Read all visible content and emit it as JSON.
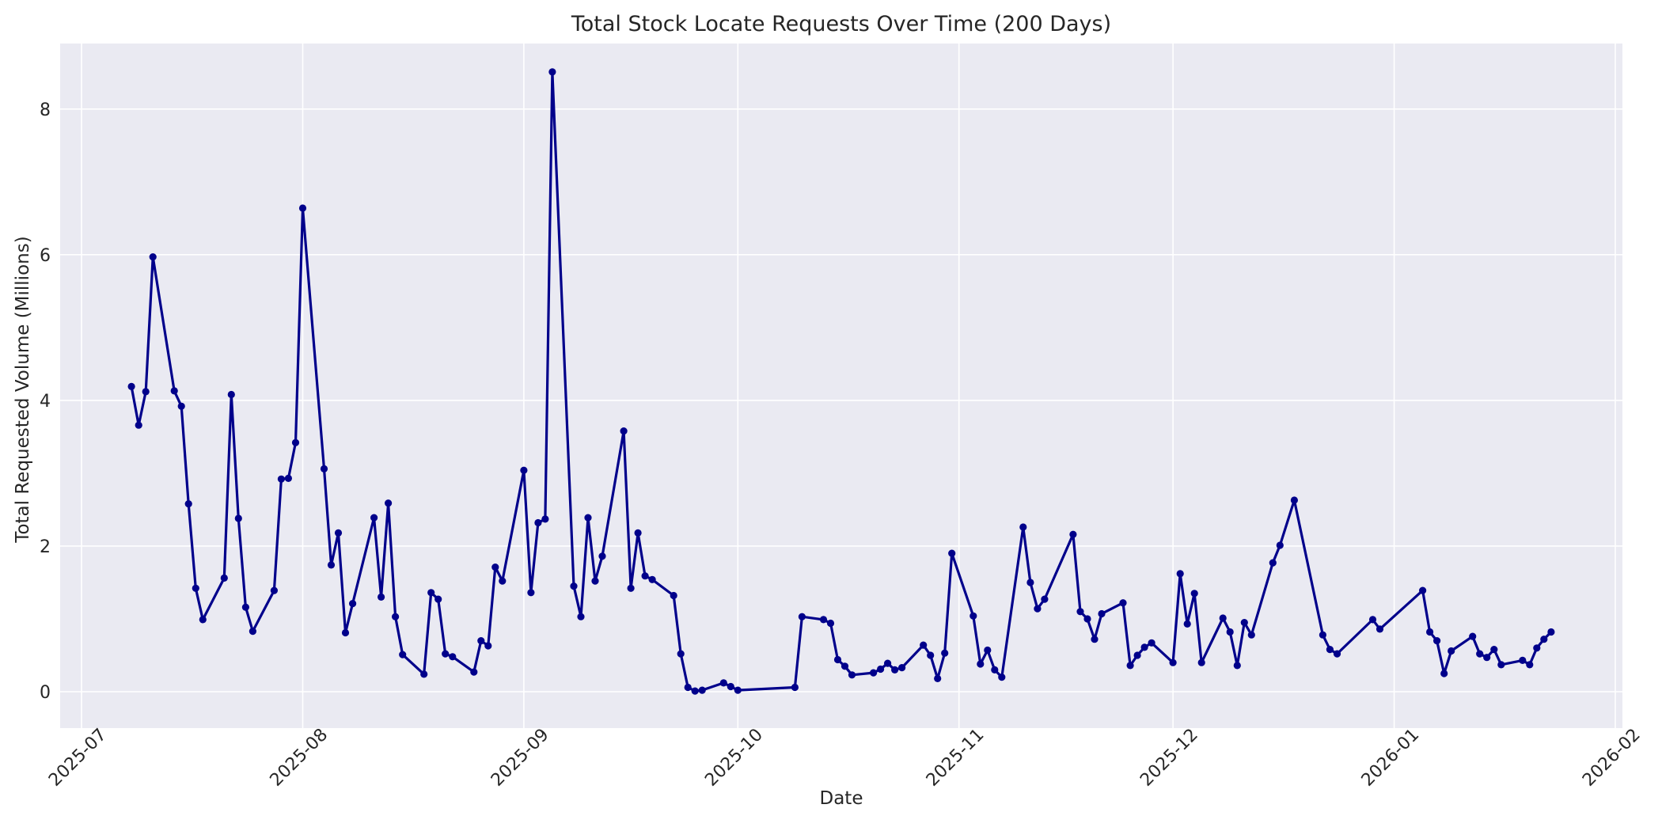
{
  "figure": {
    "background_color": "#ffffff"
  },
  "chart_data": {
    "type": "line",
    "title": "Total Stock Locate Requests Over Time (200 Days)",
    "xlabel": "Date",
    "ylabel": "Total Requested Volume (Millions)",
    "x_tick_labels": [
      "2025-07",
      "2025-08",
      "2025-09",
      "2025-10",
      "2025-11",
      "2025-12",
      "2026-01",
      "2026-02"
    ],
    "x_tick_dates": [
      "2025-07-01",
      "2025-08-01",
      "2025-09-01",
      "2025-10-01",
      "2025-11-01",
      "2025-12-01",
      "2026-01-01",
      "2026-02-01"
    ],
    "y_tick_labels": [
      "0",
      "2",
      "4",
      "6",
      "8"
    ],
    "y_ticks": [
      0,
      2,
      4,
      6,
      8
    ],
    "xlim": [
      "2025-06-28",
      "2026-02-02"
    ],
    "ylim": [
      -0.5,
      8.9
    ],
    "grid": true,
    "legend_position": "none",
    "x_tick_rotation_deg": 45,
    "style": {
      "plot_background": "#eaeaf2",
      "grid_color": "#ffffff",
      "line_color": "#00008b",
      "marker_color": "#00008b",
      "text_color": "#262626",
      "marker_shape": "circle"
    },
    "series": [
      {
        "name": "Total Requested Volume",
        "points": [
          [
            "2025-07-08",
            4.19
          ],
          [
            "2025-07-09",
            3.66
          ],
          [
            "2025-07-10",
            4.12
          ],
          [
            "2025-07-11",
            5.97
          ],
          [
            "2025-07-14",
            4.13
          ],
          [
            "2025-07-15",
            3.92
          ],
          [
            "2025-07-16",
            2.58
          ],
          [
            "2025-07-17",
            1.42
          ],
          [
            "2025-07-18",
            0.99
          ],
          [
            "2025-07-21",
            1.56
          ],
          [
            "2025-07-22",
            4.08
          ],
          [
            "2025-07-23",
            2.38
          ],
          [
            "2025-07-24",
            1.16
          ],
          [
            "2025-07-25",
            0.83
          ],
          [
            "2025-07-28",
            1.39
          ],
          [
            "2025-07-29",
            2.92
          ],
          [
            "2025-07-30",
            2.93
          ],
          [
            "2025-07-31",
            3.42
          ],
          [
            "2025-08-01",
            6.64
          ],
          [
            "2025-08-04",
            3.06
          ],
          [
            "2025-08-05",
            1.74
          ],
          [
            "2025-08-06",
            2.18
          ],
          [
            "2025-08-07",
            0.81
          ],
          [
            "2025-08-08",
            1.21
          ],
          [
            "2025-08-11",
            2.39
          ],
          [
            "2025-08-12",
            1.3
          ],
          [
            "2025-08-13",
            2.59
          ],
          [
            "2025-08-14",
            1.03
          ],
          [
            "2025-08-15",
            0.51
          ],
          [
            "2025-08-18",
            0.24
          ],
          [
            "2025-08-19",
            1.36
          ],
          [
            "2025-08-20",
            1.27
          ],
          [
            "2025-08-21",
            0.52
          ],
          [
            "2025-08-22",
            0.48
          ],
          [
            "2025-08-25",
            0.27
          ],
          [
            "2025-08-26",
            0.7
          ],
          [
            "2025-08-27",
            0.63
          ],
          [
            "2025-08-28",
            1.71
          ],
          [
            "2025-08-29",
            1.52
          ],
          [
            "2025-09-01",
            3.04
          ],
          [
            "2025-09-02",
            1.36
          ],
          [
            "2025-09-03",
            2.32
          ],
          [
            "2025-09-04",
            2.37
          ],
          [
            "2025-09-05",
            8.51
          ],
          [
            "2025-09-08",
            1.45
          ],
          [
            "2025-09-09",
            1.03
          ],
          [
            "2025-09-10",
            2.39
          ],
          [
            "2025-09-11",
            1.52
          ],
          [
            "2025-09-12",
            1.86
          ],
          [
            "2025-09-15",
            3.58
          ],
          [
            "2025-09-16",
            1.42
          ],
          [
            "2025-09-17",
            2.18
          ],
          [
            "2025-09-18",
            1.59
          ],
          [
            "2025-09-19",
            1.54
          ],
          [
            "2025-09-22",
            1.32
          ],
          [
            "2025-09-23",
            0.52
          ],
          [
            "2025-09-24",
            0.06
          ],
          [
            "2025-09-25",
            0.01
          ],
          [
            "2025-09-26",
            0.02
          ],
          [
            "2025-09-29",
            0.12
          ],
          [
            "2025-09-30",
            0.07
          ],
          [
            "2025-10-01",
            0.02
          ],
          [
            "2025-10-09",
            0.06
          ],
          [
            "2025-10-10",
            1.03
          ],
          [
            "2025-10-13",
            0.99
          ],
          [
            "2025-10-14",
            0.94
          ],
          [
            "2025-10-15",
            0.44
          ],
          [
            "2025-10-16",
            0.35
          ],
          [
            "2025-10-17",
            0.23
          ],
          [
            "2025-10-20",
            0.26
          ],
          [
            "2025-10-21",
            0.31
          ],
          [
            "2025-10-22",
            0.39
          ],
          [
            "2025-10-23",
            0.3
          ],
          [
            "2025-10-24",
            0.33
          ],
          [
            "2025-10-27",
            0.64
          ],
          [
            "2025-10-28",
            0.5
          ],
          [
            "2025-10-29",
            0.18
          ],
          [
            "2025-10-30",
            0.53
          ],
          [
            "2025-10-31",
            1.9
          ],
          [
            "2025-11-03",
            1.04
          ],
          [
            "2025-11-04",
            0.38
          ],
          [
            "2025-11-05",
            0.57
          ],
          [
            "2025-11-06",
            0.3
          ],
          [
            "2025-11-07",
            0.2
          ],
          [
            "2025-11-10",
            2.26
          ],
          [
            "2025-11-11",
            1.5
          ],
          [
            "2025-11-12",
            1.14
          ],
          [
            "2025-11-13",
            1.27
          ],
          [
            "2025-11-17",
            2.16
          ],
          [
            "2025-11-18",
            1.1
          ],
          [
            "2025-11-19",
            1.0
          ],
          [
            "2025-11-20",
            0.72
          ],
          [
            "2025-11-21",
            1.07
          ],
          [
            "2025-11-24",
            1.22
          ],
          [
            "2025-11-25",
            0.36
          ],
          [
            "2025-11-26",
            0.5
          ],
          [
            "2025-11-27",
            0.61
          ],
          [
            "2025-11-28",
            0.67
          ],
          [
            "2025-12-01",
            0.4
          ],
          [
            "2025-12-02",
            1.62
          ],
          [
            "2025-12-03",
            0.93
          ],
          [
            "2025-12-04",
            1.35
          ],
          [
            "2025-12-05",
            0.4
          ],
          [
            "2025-12-08",
            1.01
          ],
          [
            "2025-12-09",
            0.82
          ],
          [
            "2025-12-10",
            0.36
          ],
          [
            "2025-12-11",
            0.95
          ],
          [
            "2025-12-12",
            0.78
          ],
          [
            "2025-12-15",
            1.77
          ],
          [
            "2025-12-16",
            2.01
          ],
          [
            "2025-12-18",
            2.63
          ],
          [
            "2025-12-22",
            0.78
          ],
          [
            "2025-12-23",
            0.58
          ],
          [
            "2025-12-24",
            0.52
          ],
          [
            "2025-12-29",
            0.99
          ],
          [
            "2025-12-30",
            0.86
          ],
          [
            "2026-01-05",
            1.39
          ],
          [
            "2026-01-06",
            0.82
          ],
          [
            "2026-01-07",
            0.7
          ],
          [
            "2026-01-08",
            0.25
          ],
          [
            "2026-01-09",
            0.56
          ],
          [
            "2026-01-12",
            0.76
          ],
          [
            "2026-01-13",
            0.52
          ],
          [
            "2026-01-14",
            0.47
          ],
          [
            "2026-01-15",
            0.58
          ],
          [
            "2026-01-16",
            0.37
          ],
          [
            "2026-01-19",
            0.43
          ],
          [
            "2026-01-20",
            0.37
          ],
          [
            "2026-01-21",
            0.6
          ],
          [
            "2026-01-22",
            0.72
          ],
          [
            "2026-01-23",
            0.82
          ]
        ]
      }
    ]
  }
}
